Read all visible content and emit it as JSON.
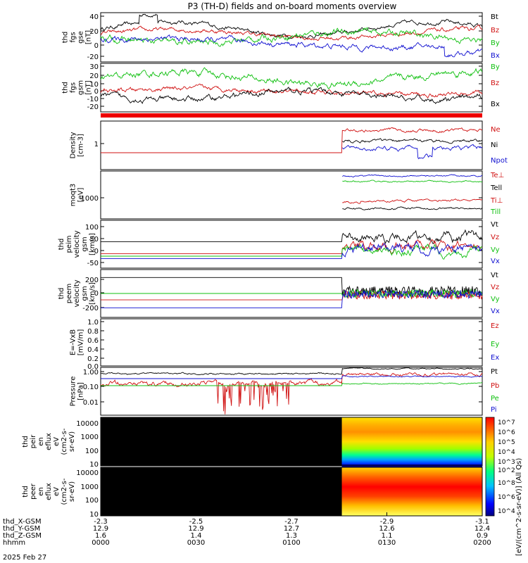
{
  "chart_data": {
    "type": "line",
    "title": "P3 (TH-D) fields and on-board moments overview",
    "date_label": "2025 Feb 27",
    "cbar_label": "[eV/(cm^2-s-sr-eV)] (All Qs)",
    "cbar_ticks": [
      "10^7",
      "10^6",
      "10^5",
      "10^4",
      "10^3",
      "10^2",
      "10^8",
      "10^6",
      "10^4",
      "10^2"
    ],
    "x_axis": {
      "rows": [
        {
          "name": "thd_X-GSM",
          "values": [
            "-2.3",
            "-2.5",
            "-2.7",
            "-2.9",
            "-3.1"
          ]
        },
        {
          "name": "thd_Y-GSM",
          "values": [
            "12.9",
            "12.9",
            "12.7",
            "12.6",
            "12.4"
          ]
        },
        {
          "name": "thd_Z-GSM",
          "values": [
            "1.6",
            "1.4",
            "1.3",
            "1.1",
            "0.9"
          ]
        },
        {
          "name": "hhmm",
          "values": [
            "0000",
            "0030",
            "0100",
            "0130",
            "0200"
          ]
        }
      ]
    },
    "panels": [
      {
        "ylabel": [
          "thd",
          "fgs",
          "gse",
          "[nT]"
        ],
        "ticks": [
          "40",
          "20",
          "0",
          "-20"
        ],
        "ylim": [
          -25,
          45
        ],
        "legend": [
          {
            "name": "Bt",
            "color": "#000000"
          },
          {
            "name": "Bz",
            "color": "#d01010"
          },
          {
            "name": "By",
            "color": "#10c010"
          },
          {
            "name": "Bx",
            "color": "#1010d0"
          }
        ]
      },
      {
        "ylabel": [
          "thd",
          "fgs",
          "gsm",
          "[nT]"
        ],
        "ticks": [
          "30",
          "20",
          "10",
          "0",
          "-10",
          "-20"
        ],
        "ylim": [
          -30,
          35
        ],
        "legend": [
          {
            "name": "By",
            "color": "#10c010"
          },
          {
            "name": "Bz",
            "color": "#d01010"
          },
          {
            "name": "Bx",
            "color": "#000000"
          }
        ]
      },
      {
        "ylabel": [
          "Density",
          "[cm-3]"
        ],
        "ticks": [
          "1"
        ],
        "ylim": [
          0.2,
          3
        ],
        "legend": [
          {
            "name": "Ne",
            "color": "#d01010"
          },
          {
            "name": "Ni",
            "color": "#000000"
          },
          {
            "name": "Npot",
            "color": "#1010d0"
          }
        ]
      },
      {
        "ylabel": [
          "moqt3",
          "[eV]"
        ],
        "ticks": [
          "1000"
        ],
        "ylim": [
          300,
          20000
        ],
        "legend": [
          {
            "name": "Te⊥",
            "color": "#d01010"
          },
          {
            "name": "Tell",
            "color": "#000000"
          },
          {
            "name": "Ti⊥",
            "color": "#d01010"
          },
          {
            "name": "Till",
            "color": "#10c010"
          }
        ]
      },
      {
        "ylabel": [
          "thd",
          "peim",
          "velocity",
          "gsm",
          "[km/s]"
        ],
        "ticks": [
          "100",
          "50",
          "0",
          "-50"
        ],
        "ylim": [
          -70,
          130
        ],
        "legend": [
          {
            "name": "Vt",
            "color": "#000000"
          },
          {
            "name": "Vz",
            "color": "#d01010"
          },
          {
            "name": "Vy",
            "color": "#10c010"
          },
          {
            "name": "Vx",
            "color": "#1010d0"
          }
        ]
      },
      {
        "ylabel": [
          "thd",
          "peem",
          "velocity",
          "gsm",
          "[km/s]"
        ],
        "ticks": [
          "200",
          "0",
          "-200"
        ],
        "ylim": [
          -300,
          300
        ],
        "legend": [
          {
            "name": "Vt",
            "color": "#000000"
          },
          {
            "name": "Vz",
            "color": "#d01010"
          },
          {
            "name": "Vy",
            "color": "#10c010"
          },
          {
            "name": "Vx",
            "color": "#1010d0"
          }
        ]
      },
      {
        "ylabel": [
          "E=-VxB",
          "[mV/m]"
        ],
        "ticks": [
          "1.0",
          "0.8",
          "0.6",
          "0.4",
          "0.2",
          "0.0"
        ],
        "ylim": [
          0,
          1
        ],
        "legend": [
          {
            "name": "Ez",
            "color": "#d01010"
          },
          {
            "name": "Ey",
            "color": "#10c010"
          },
          {
            "name": "Ex",
            "color": "#1010d0"
          }
        ]
      },
      {
        "ylabel": [
          "Pressure",
          "[nPa]"
        ],
        "ticks": [
          "1.00",
          "0.10",
          "0.01"
        ],
        "ylim": [
          0.001,
          1.3
        ],
        "legend": [
          {
            "name": "Pt",
            "color": "#000000"
          },
          {
            "name": "Pb",
            "color": "#d01010"
          },
          {
            "name": "Pe",
            "color": "#10c010"
          },
          {
            "name": "Pi",
            "color": "#1010d0"
          }
        ]
      },
      {
        "ylabel": [
          "thd",
          "peir",
          "en",
          "eflux",
          "eV",
          "(cm2-s-",
          "sr-eV)"
        ],
        "ticks": [
          "10000",
          "1000",
          "100",
          "10"
        ],
        "ylim": [
          5,
          25000
        ]
      },
      {
        "ylabel": [
          "thd",
          "peer",
          "en",
          "eflux",
          "eV",
          "(cm2-s-",
          "sr-eV)"
        ],
        "ticks": [
          "10000",
          "1000",
          "100",
          "10"
        ],
        "ylim": [
          5,
          25000
        ]
      }
    ]
  }
}
